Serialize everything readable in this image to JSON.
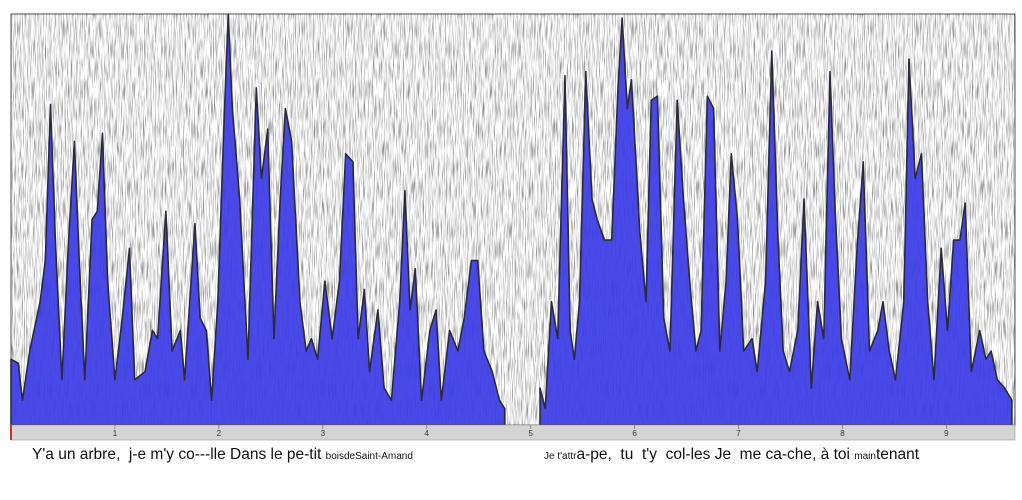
{
  "chart_data": {
    "type": "area",
    "color": "#3b3be6",
    "edge_color": "#2a2a3a",
    "xlim": [
      0,
      9.66
    ],
    "ylim": [
      0,
      100
    ],
    "xticks": [
      1,
      2,
      3,
      4,
      5,
      6,
      7,
      8,
      9
    ],
    "x": [
      0.0,
      0.07,
      0.11,
      0.18,
      0.28,
      0.33,
      0.38,
      0.43,
      0.49,
      0.55,
      0.61,
      0.66,
      0.71,
      0.78,
      0.83,
      0.88,
      0.93,
      1.0,
      1.07,
      1.14,
      1.19,
      1.29,
      1.36,
      1.41,
      1.49,
      1.55,
      1.63,
      1.67,
      1.77,
      1.82,
      1.88,
      1.93,
      1.99,
      2.05,
      2.09,
      2.13,
      2.2,
      2.28,
      2.36,
      2.41,
      2.47,
      2.53,
      2.59,
      2.64,
      2.7,
      2.78,
      2.84,
      2.89,
      2.95,
      3.02,
      3.09,
      3.16,
      3.22,
      3.29,
      3.34,
      3.4,
      3.45,
      3.53,
      3.59,
      3.66,
      3.74,
      3.79,
      3.84,
      3.89,
      3.95,
      4.03,
      4.09,
      4.14,
      4.22,
      4.3,
      4.36,
      4.43,
      4.49,
      4.55,
      4.63,
      4.7,
      4.75,
      4.9,
      5.09,
      5.14,
      5.2,
      5.26,
      5.33,
      5.38,
      5.42,
      5.47,
      5.53,
      5.59,
      5.64,
      5.71,
      5.78,
      5.84,
      5.88,
      5.93,
      5.97,
      6.05,
      6.11,
      6.16,
      6.22,
      6.28,
      6.34,
      6.41,
      6.47,
      6.53,
      6.59,
      6.64,
      6.7,
      6.76,
      6.82,
      6.88,
      6.93,
      6.99,
      7.05,
      7.13,
      7.18,
      7.26,
      7.32,
      7.38,
      7.43,
      7.49,
      7.57,
      7.63,
      7.7,
      7.76,
      7.82,
      7.88,
      7.93,
      7.99,
      8.07,
      8.14,
      8.2,
      8.26,
      8.34,
      8.39,
      8.45,
      8.51,
      8.59,
      8.64,
      8.7,
      8.76,
      8.82,
      8.88,
      8.95,
      9.01,
      9.07,
      9.13,
      9.18,
      9.24,
      9.32,
      9.38,
      9.43,
      9.49,
      9.56,
      9.63
    ],
    "values": [
      16,
      15,
      6,
      18,
      30,
      40,
      78,
      43,
      11,
      43,
      69,
      38,
      11,
      50,
      52,
      71,
      35,
      11,
      26,
      43,
      11,
      13,
      23,
      21,
      52,
      18,
      23,
      11,
      49,
      26,
      23,
      6,
      30,
      74,
      100,
      77,
      55,
      16,
      82,
      60,
      72,
      21,
      55,
      77,
      69,
      30,
      18,
      21,
      16,
      35,
      21,
      35,
      66,
      64,
      21,
      33,
      13,
      28,
      9,
      6,
      30,
      57,
      28,
      38,
      6,
      23,
      28,
      6,
      23,
      18,
      26,
      40,
      40,
      18,
      13,
      6,
      4,
      null,
      9,
      4,
      30,
      21,
      85,
      23,
      16,
      30,
      86,
      55,
      50,
      45,
      45,
      82,
      99,
      77,
      84,
      47,
      30,
      79,
      80,
      26,
      18,
      79,
      55,
      35,
      18,
      23,
      80,
      77,
      18,
      35,
      66,
      50,
      18,
      21,
      13,
      35,
      91,
      45,
      18,
      13,
      23,
      55,
      9,
      30,
      21,
      86,
      52,
      21,
      11,
      43,
      64,
      18,
      23,
      30,
      18,
      11,
      30,
      89,
      60,
      66,
      30,
      11,
      43,
      23,
      45,
      45,
      54,
      13,
      23,
      16,
      18,
      11,
      9,
      6
    ],
    "lyrics": [
      [
        {
          "text": "Y'a un arbre,  j-e m'y co---lle Dans le pe-tit ",
          "small": false
        },
        {
          "text": "boisdeSaint-Amand",
          "small": true
        }
      ],
      [
        {
          "text": "Je t'attr",
          "small": true
        },
        {
          "text": "a-pe,  tu  t'y  col-les Je  me ca-che, à toi ",
          "small": false
        },
        {
          "text": "main",
          "small": true
        },
        {
          "text": "tenant",
          "small": false
        }
      ]
    ]
  }
}
